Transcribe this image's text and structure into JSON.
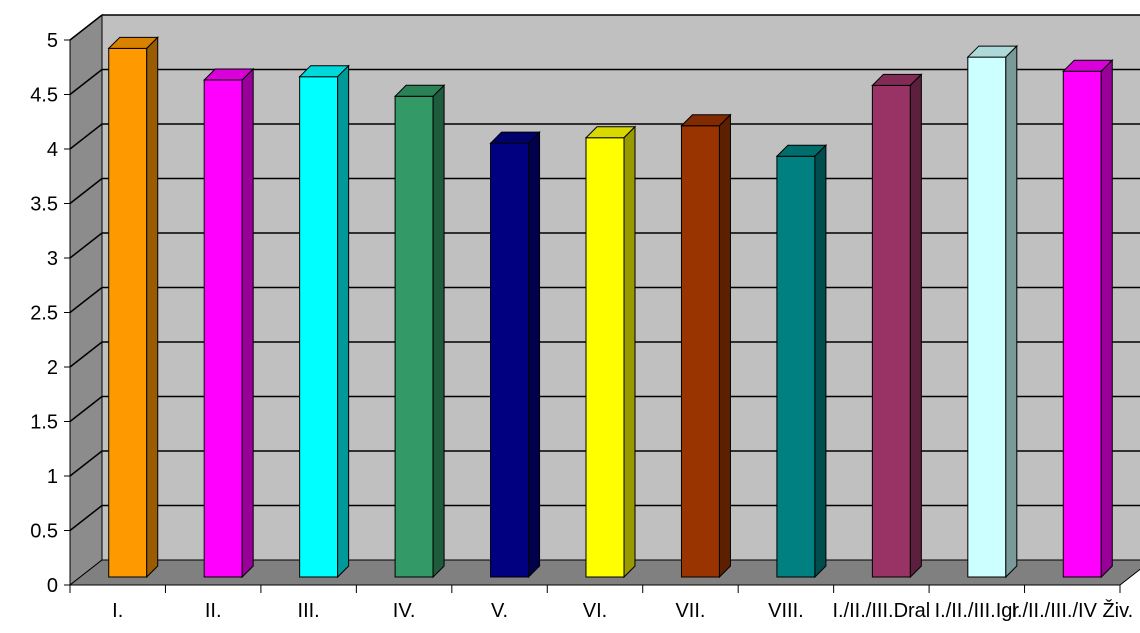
{
  "chart_data": {
    "type": "bar",
    "title": "",
    "xlabel": "",
    "ylabel": "",
    "categories": [
      "I.",
      "II.",
      "III.",
      "IV.",
      "V.",
      "VI.",
      "VII.",
      "VIII.",
      "I./II./III.Dral",
      "I./II./III.Igr",
      "I./II./III./IV Živ."
    ],
    "values": [
      4.85,
      4.56,
      4.59,
      4.41,
      3.98,
      4.03,
      4.14,
      3.86,
      4.51,
      4.77,
      4.64
    ],
    "ylim": [
      0,
      5
    ],
    "yticks": [
      "0",
      "0.5",
      "1",
      "1.5",
      "2",
      "2.5",
      "3",
      "3.5",
      "4",
      "4.5",
      "5"
    ],
    "grid": true,
    "bar_colors": [
      "#FF9900",
      "#FF00FF",
      "#00FFFF",
      "#339966",
      "#000080",
      "#FFFF00",
      "#993300",
      "#008080",
      "#993366",
      "#CCFFFF",
      "#FF00FF"
    ],
    "wall_color": "#C0C0C0",
    "floor_color": "#808080"
  }
}
